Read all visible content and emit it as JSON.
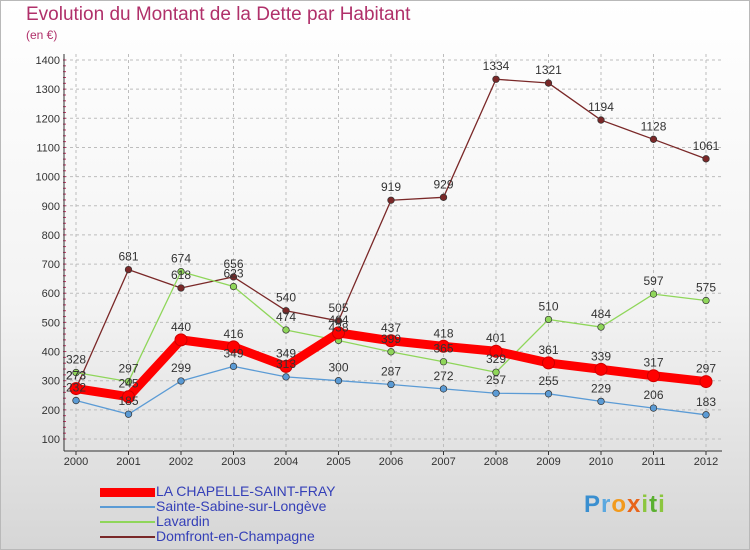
{
  "header": {
    "title": "Evolution du Montant de la Dette par Habitant",
    "unit": "(en €)"
  },
  "logo": {
    "text": "Proxiti"
  },
  "chart_data": {
    "type": "line",
    "title": "Evolution du Montant de la Dette par Habitant",
    "ylabel": "(en €)",
    "xlabel": "",
    "x": [
      "2000",
      "2001",
      "2002",
      "2003",
      "2004",
      "2005",
      "2006",
      "2007",
      "2008",
      "2009",
      "2010",
      "2011",
      "2012"
    ],
    "ylim": [
      100,
      1400
    ],
    "yticks": [
      100,
      200,
      300,
      400,
      500,
      600,
      700,
      800,
      900,
      1000,
      1100,
      1200,
      1300,
      1400
    ],
    "grid": true,
    "legend": "bottom-left",
    "series": [
      {
        "name": "LA CHAPELLE-SAINT-FRAY",
        "color": "#ff0000",
        "values": [
          273,
          245,
          440,
          416,
          349,
          464,
          437,
          418,
          401,
          361,
          339,
          317,
          297
        ],
        "labels": [
          "273",
          "245",
          "440",
          "416",
          "349",
          "464",
          "437",
          "418",
          "401",
          "361",
          "339",
          "317",
          "297"
        ]
      },
      {
        "name": "Sainte-Sabine-sur-Longève",
        "color": "#5b9bd5",
        "values": [
          232,
          185,
          299,
          349,
          313,
          300,
          287,
          272,
          257,
          255,
          229,
          206,
          183
        ],
        "labels": [
          "232",
          "185",
          "299",
          "349",
          "313",
          "300",
          "287",
          "272",
          "257",
          "255",
          "229",
          "206",
          "183"
        ]
      },
      {
        "name": "Lavardin",
        "color": "#8fd65a",
        "values": [
          328,
          297,
          674,
          623,
          474,
          438,
          399,
          365,
          329,
          510,
          484,
          597,
          575
        ],
        "labels": [
          "328",
          "297",
          "674",
          "623",
          "474",
          "438",
          "399",
          "365",
          "329",
          "510",
          "484",
          "597",
          "575"
        ]
      },
      {
        "name": "Domfront-en-Champagne",
        "color": "#7a2828",
        "values": [
          273,
          681,
          618,
          656,
          540,
          505,
          919,
          929,
          1334,
          1321,
          1194,
          1128,
          1061
        ],
        "labels": [
          "273",
          "681",
          "618",
          "656",
          "540",
          "505",
          "919",
          "929",
          "1334",
          "1321",
          "1194",
          "1128",
          "1061"
        ]
      }
    ]
  }
}
